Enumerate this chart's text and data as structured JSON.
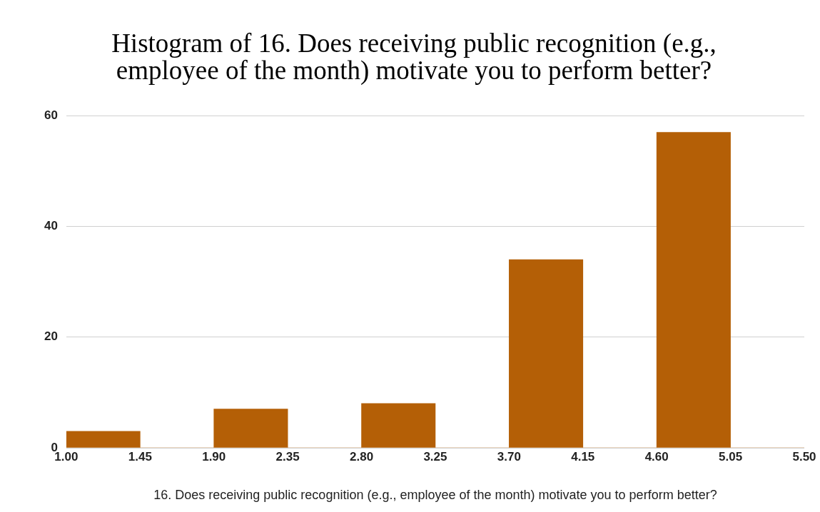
{
  "chart_data": {
    "type": "histogram",
    "title": "Histogram of 16. Does receiving public recognition (e.g., employee of the month) motivate you to perform better?",
    "xlabel": "16. Does receiving public recognition (e.g., employee of the month) motivate you to perform better?",
    "bins": [
      1.0,
      1.45,
      1.9,
      2.35,
      2.8,
      3.25,
      3.7,
      4.15,
      4.6,
      5.05,
      5.5
    ],
    "values": [
      3,
      0,
      7,
      0,
      8,
      0,
      34,
      0,
      57,
      0
    ],
    "color": "#b45f06",
    "xlim": [
      1.0,
      5.5
    ],
    "xticks": [
      {
        "value": 1.0,
        "label": "1.00"
      },
      {
        "value": 1.45,
        "label": "1.45"
      },
      {
        "value": 1.9,
        "label": "1.90"
      },
      {
        "value": 2.35,
        "label": "2.35"
      },
      {
        "value": 2.8,
        "label": "2.80"
      },
      {
        "value": 3.25,
        "label": "3.25"
      },
      {
        "value": 3.7,
        "label": "3.70"
      },
      {
        "value": 4.15,
        "label": "4.15"
      },
      {
        "value": 4.6,
        "label": "4.60"
      },
      {
        "value": 5.05,
        "label": "5.05"
      },
      {
        "value": 5.5,
        "label": "5.50"
      }
    ],
    "ylim": [
      0,
      60
    ],
    "yticks": [
      0,
      20,
      40,
      60
    ],
    "grid": "y",
    "legend": false
  }
}
